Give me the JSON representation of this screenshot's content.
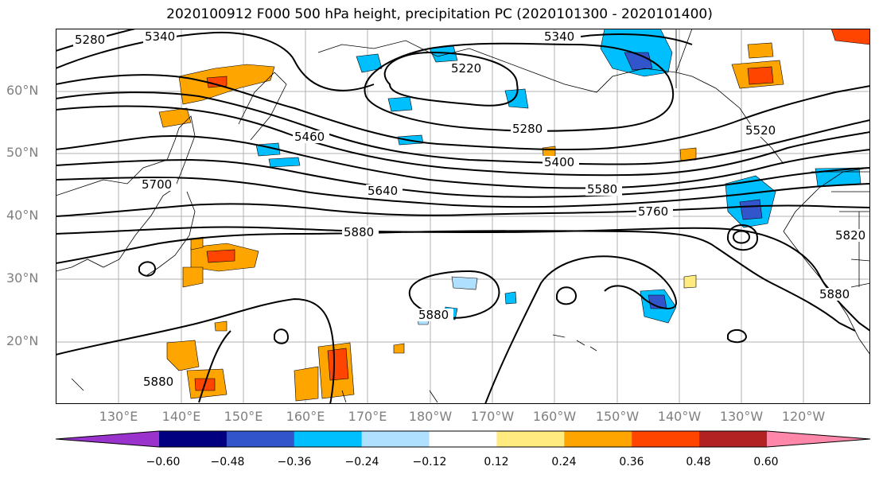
{
  "title": "2020100912 F000 500 hPa height, precipitation PC (2020101300 - 2020101400)",
  "lat_labels": [
    "60°N",
    "50°N",
    "40°N",
    "30°N",
    "20°N"
  ],
  "lon_labels": [
    "130°E",
    "140°E",
    "150°E",
    "160°E",
    "170°E",
    "180°W",
    "170°W",
    "160°W",
    "150°W",
    "140°W",
    "130°W",
    "120°W"
  ],
  "contour_labels": [
    "5280",
    "5340",
    "5340",
    "5220",
    "5280",
    "5460",
    "5400",
    "5700",
    "5640",
    "5580",
    "5760",
    "5520",
    "5880",
    "5880",
    "5880",
    "5820",
    "5880"
  ],
  "colorbar": {
    "tick_labels": [
      "−0.60",
      "−0.48",
      "−0.36",
      "−0.24",
      "−0.12",
      "0.12",
      "0.24",
      "0.36",
      "0.48",
      "0.60"
    ],
    "colors": [
      "#9933cc",
      "#000080",
      "#3355cc",
      "#00bfff",
      "#b0e0ff",
      "#ffffff",
      "#ffeb80",
      "#ffa500",
      "#ff4500",
      "#b22222",
      "#ff88aa"
    ]
  }
}
